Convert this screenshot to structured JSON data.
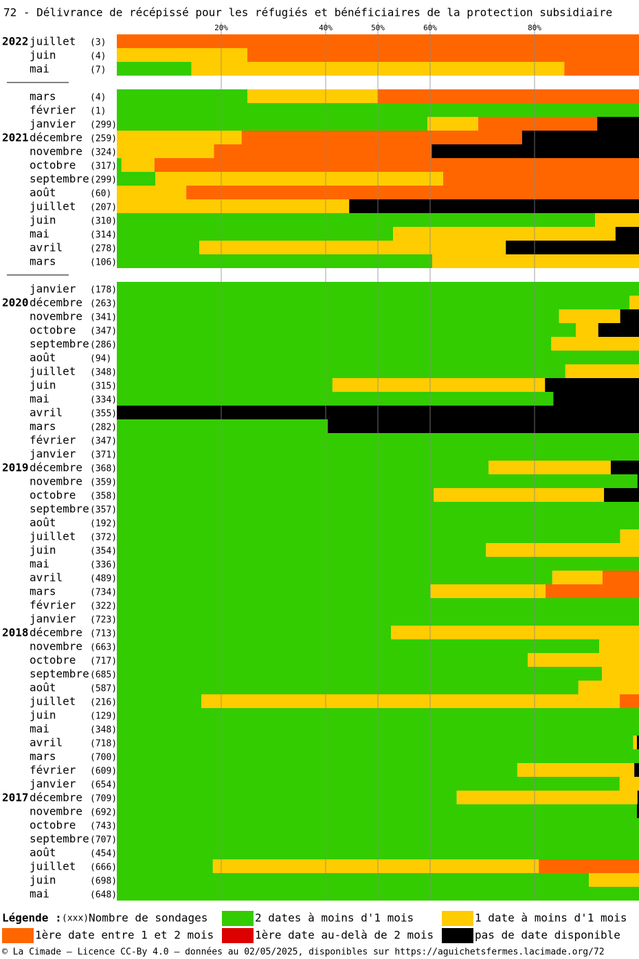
{
  "chart_data": {
    "type": "stacked-bar-horizontal",
    "title": "72 - Délivrance de récépissé pour les réfugiés et bénéficiaires de la protection subsidiaire",
    "years": [
      "2022",
      null,
      null,
      null,
      null,
      null,
      null,
      "2021",
      null,
      null,
      null,
      null,
      null,
      null,
      null,
      null,
      null,
      null,
      null,
      "2020",
      null,
      null,
      null,
      null,
      null,
      null,
      null,
      null,
      null,
      null,
      null,
      "2019",
      null,
      null,
      null,
      null,
      null,
      null,
      null,
      null,
      null,
      null,
      null,
      "2018",
      null,
      null,
      null,
      null,
      null,
      null,
      null,
      null,
      null,
      null,
      null,
      "2017",
      null,
      null,
      null,
      null,
      null,
      null,
      null
    ],
    "categories": [
      "juillet",
      "juin",
      "mai",
      null,
      "mars",
      "février",
      "janvier",
      "décembre",
      "novembre",
      "octobre",
      "septembre",
      "août",
      "juillet",
      "juin",
      "mai",
      "avril",
      "mars",
      null,
      "janvier",
      "décembre",
      "novembre",
      "octobre",
      "septembre",
      "août",
      "juillet",
      "juin",
      "mai",
      "avril",
      "mars",
      "février",
      "janvier",
      "décembre",
      "novembre",
      "octobre",
      "septembre",
      "août",
      "juillet",
      "juin",
      "mai",
      "avril",
      "mars",
      "février",
      "janvier",
      "décembre",
      "novembre",
      "octobre",
      "septembre",
      "août",
      "juillet",
      "juin",
      "mai",
      "avril",
      "mars",
      "février",
      "janvier",
      "décembre",
      "novembre",
      "octobre",
      "septembre",
      "août",
      "juillet",
      "juin",
      "mai"
    ],
    "counts": [
      "(3)",
      "(4)",
      "(7)",
      null,
      "(4)",
      "(1)",
      "(299)",
      "(259)",
      "(324)",
      "(317)",
      "(299)",
      "(60)",
      "(207)",
      "(310)",
      "(314)",
      "(278)",
      "(106)",
      null,
      "(178)",
      "(263)",
      "(341)",
      "(347)",
      "(286)",
      "(94)",
      "(348)",
      "(315)",
      "(334)",
      "(355)",
      "(282)",
      "(347)",
      "(371)",
      "(368)",
      "(359)",
      "(358)",
      "(357)",
      "(192)",
      "(372)",
      "(354)",
      "(336)",
      "(489)",
      "(734)",
      "(322)",
      "(723)",
      "(713)",
      "(663)",
      "(717)",
      "(685)",
      "(587)",
      "(216)",
      "(129)",
      "(348)",
      "(718)",
      "(700)",
      "(609)",
      "(654)",
      "(709)",
      "(692)",
      "(743)",
      "(707)",
      "(454)",
      "(666)",
      "(698)",
      "(648)"
    ],
    "series": [
      {
        "name": "2 dates à moins d'1 mois",
        "color": "#33cc00",
        "values": [
          0,
          0,
          14.3,
          null,
          25,
          100,
          59.5,
          0,
          0,
          0.9,
          7.4,
          0,
          0,
          91.6,
          52.9,
          15.8,
          60.4,
          null,
          100,
          98.2,
          84.7,
          87.9,
          83.2,
          100,
          85.9,
          41.3,
          83.6,
          0,
          40.4,
          100,
          100,
          71.2,
          99.7,
          60.7,
          100,
          100,
          96.4,
          70.7,
          100,
          83.4,
          60.1,
          100,
          100,
          52.5,
          92.4,
          78.7,
          92.9,
          88.4,
          16.2,
          100,
          100,
          98.9,
          100,
          76.7,
          96.3,
          65.1,
          99.6,
          100,
          100,
          100,
          18.4,
          90.4,
          100
        ]
      },
      {
        "name": "1 date à moins d'1 mois",
        "color": "#ffcc00",
        "values": [
          0,
          25,
          71.4,
          null,
          25,
          0,
          9.7,
          23.9,
          18.6,
          6.3,
          55.1,
          13.3,
          44.5,
          8.4,
          42.6,
          58.7,
          39.6,
          null,
          0,
          1.8,
          11.7,
          4.3,
          16.8,
          0,
          14.1,
          40.7,
          0,
          0,
          0,
          0,
          0,
          23.4,
          0,
          32.6,
          0,
          0,
          3.6,
          29.3,
          0,
          9.6,
          22,
          0,
          0,
          47.5,
          7.6,
          21.3,
          7.1,
          11.6,
          80.1,
          0,
          0,
          0.7,
          0,
          22.4,
          3.7,
          34.6,
          0,
          0,
          0,
          0,
          62.4,
          9.6,
          0
        ]
      },
      {
        "name": "1ère date entre 1 et 2 mois",
        "color": "#ff6600",
        "values": [
          100,
          75,
          14.3,
          null,
          50,
          0,
          22.8,
          53.7,
          41.7,
          92.8,
          37.5,
          86.7,
          0,
          0,
          0,
          0,
          0,
          null,
          0,
          0,
          0,
          0,
          0,
          0,
          0,
          0,
          0,
          0,
          0,
          0,
          0,
          0,
          0,
          0,
          0,
          0,
          0,
          0,
          0,
          7,
          17.9,
          0,
          0,
          0,
          0,
          0,
          0,
          0,
          3.7,
          0,
          0,
          0,
          0,
          0,
          0,
          0,
          0,
          0,
          0,
          0,
          19.2,
          0,
          0
        ]
      },
      {
        "name": "1ère date au-delà de 2 mois",
        "color": "#dd0000",
        "values": [
          0,
          0,
          0,
          null,
          0,
          0,
          0,
          0,
          0,
          0,
          0,
          0,
          0,
          0,
          0,
          0,
          0,
          null,
          0,
          0,
          0,
          0,
          0,
          0,
          0,
          0,
          0,
          0,
          0,
          0,
          0,
          0,
          0,
          0,
          0,
          0,
          0,
          0,
          0,
          0,
          0,
          0,
          0,
          0,
          0,
          0,
          0,
          0,
          0,
          0,
          0,
          0,
          0,
          0,
          0,
          0,
          0,
          0,
          0,
          0,
          0,
          0,
          0
        ]
      },
      {
        "name": "pas de date disponible",
        "color": "#000000",
        "values": [
          0,
          0,
          0,
          null,
          0,
          0,
          8,
          22.4,
          39.7,
          0,
          0,
          0,
          55.5,
          0,
          4.5,
          25.5,
          0,
          null,
          0,
          0,
          3.6,
          7.8,
          0,
          0,
          0,
          18,
          16.4,
          100,
          59.6,
          0,
          0,
          5.4,
          0.3,
          6.7,
          0,
          0,
          0,
          0,
          0,
          0,
          0,
          0,
          0,
          0,
          0,
          0,
          0,
          0,
          0,
          0,
          0,
          0.4,
          0,
          0.9,
          0,
          0.3,
          0.4,
          0,
          0,
          0,
          0,
          0,
          0
        ]
      }
    ],
    "xlim": [
      0,
      100
    ],
    "xticks": [
      {
        "value": 20,
        "label": "20%"
      },
      {
        "value": 40,
        "label": "40%"
      },
      {
        "value": 50,
        "label": "50%"
      },
      {
        "value": 60,
        "label": "60%"
      },
      {
        "value": 80,
        "label": "80%"
      }
    ],
    "grid": true,
    "legend_title": "Légende :",
    "legend_count_sample": "(xxx)",
    "legend_count_label": "Nombre de sondages",
    "footer": "© La Cimade — Licence CC-By 4.0 — données au 02/05/2025, disponibles sur https://aguichetsfermes.lacimade.org/72"
  }
}
